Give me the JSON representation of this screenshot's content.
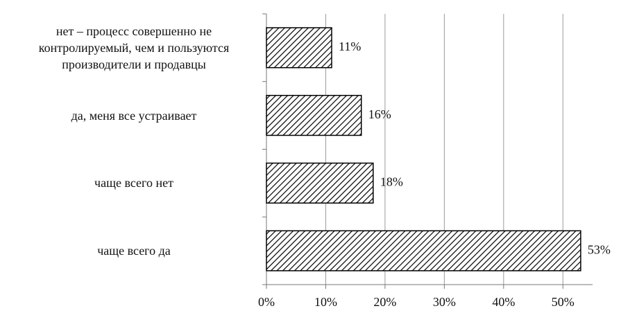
{
  "chart_data": {
    "type": "barh",
    "categories": [
      "нет – процесс совершенно не контролируемый, чем и пользуются производители и продавцы",
      "да, меня все устраивает",
      "чаще всего нет",
      "чаще всего да"
    ],
    "values": [
      11,
      16,
      18,
      53
    ],
    "value_labels": [
      "11%",
      "16%",
      "18%",
      "53%"
    ],
    "color": "#000000",
    "xlim": [
      0,
      55
    ],
    "xticks": [
      {
        "value": 0,
        "label": "0%"
      },
      {
        "value": 10,
        "label": "10%"
      },
      {
        "value": 20,
        "label": "20%"
      },
      {
        "value": 30,
        "label": "30%"
      },
      {
        "value": 40,
        "label": "40%"
      },
      {
        "value": 50,
        "label": "50%"
      }
    ],
    "grid": true
  }
}
